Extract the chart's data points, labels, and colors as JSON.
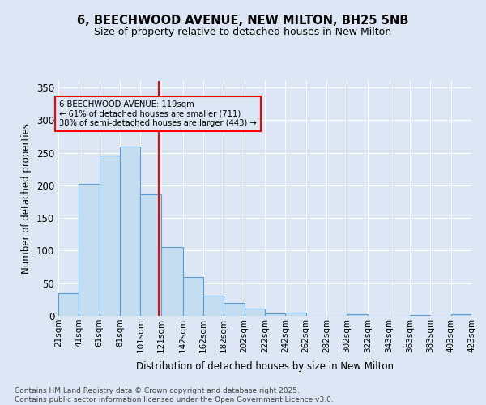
{
  "title": "6, BEECHWOOD AVENUE, NEW MILTON, BH25 5NB",
  "subtitle": "Size of property relative to detached houses in New Milton",
  "xlabel": "Distribution of detached houses by size in New Milton",
  "ylabel": "Number of detached properties",
  "property_label": "6 BEECHWOOD AVENUE: 119sqm",
  "annotation_line1": "← 61% of detached houses are smaller (711)",
  "annotation_line2": "38% of semi-detached houses are larger (443) →",
  "bin_edges": [
    21,
    41,
    61,
    81,
    101,
    121,
    142,
    162,
    182,
    202,
    222,
    242,
    262,
    282,
    302,
    322,
    343,
    363,
    383,
    403,
    423
  ],
  "bin_counts": [
    35,
    202,
    246,
    259,
    186,
    106,
    59,
    31,
    20,
    11,
    4,
    5,
    0,
    0,
    3,
    0,
    0,
    1,
    0,
    2
  ],
  "bar_color": "#c5ddf0",
  "bar_edge_color": "#5b9bd5",
  "vline_color": "red",
  "vline_x": 119,
  "ylim": [
    0,
    360
  ],
  "yticks": [
    0,
    50,
    100,
    150,
    200,
    250,
    300,
    350
  ],
  "bg_color": "#dce6f5",
  "grid_color": "white",
  "annotation_box_color": "red",
  "footer_line1": "Contains HM Land Registry data © Crown copyright and database right 2025.",
  "footer_line2": "Contains public sector information licensed under the Open Government Licence v3.0."
}
